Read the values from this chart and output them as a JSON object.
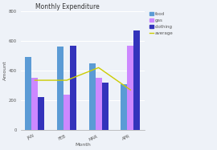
{
  "title": "Monthly Expenditure",
  "xlabel": "Month",
  "ylabel": "Amount",
  "months": [
    "JAN",
    "FEB",
    "MAR",
    "APR"
  ],
  "food": [
    490,
    560,
    450,
    310
  ],
  "gas": [
    350,
    240,
    350,
    570
  ],
  "clothing": [
    220,
    570,
    320,
    670
  ],
  "average": [
    335,
    335,
    420,
    270
  ],
  "bar_colors": {
    "food": "#5B9BD5",
    "gas": "#CC88FF",
    "clothing": "#3333BB"
  },
  "avg_color": "#CCCC00",
  "ylim": [
    0,
    800
  ],
  "yticks": [
    0,
    200,
    400,
    600,
    800
  ],
  "background_color": "#EEF2F8",
  "plot_bg_color": "#EEF2F8",
  "grid_color": "#FFFFFF",
  "title_fontsize": 5.5,
  "axis_label_fontsize": 4.5,
  "tick_fontsize": 3.8,
  "legend_fontsize": 4.0
}
